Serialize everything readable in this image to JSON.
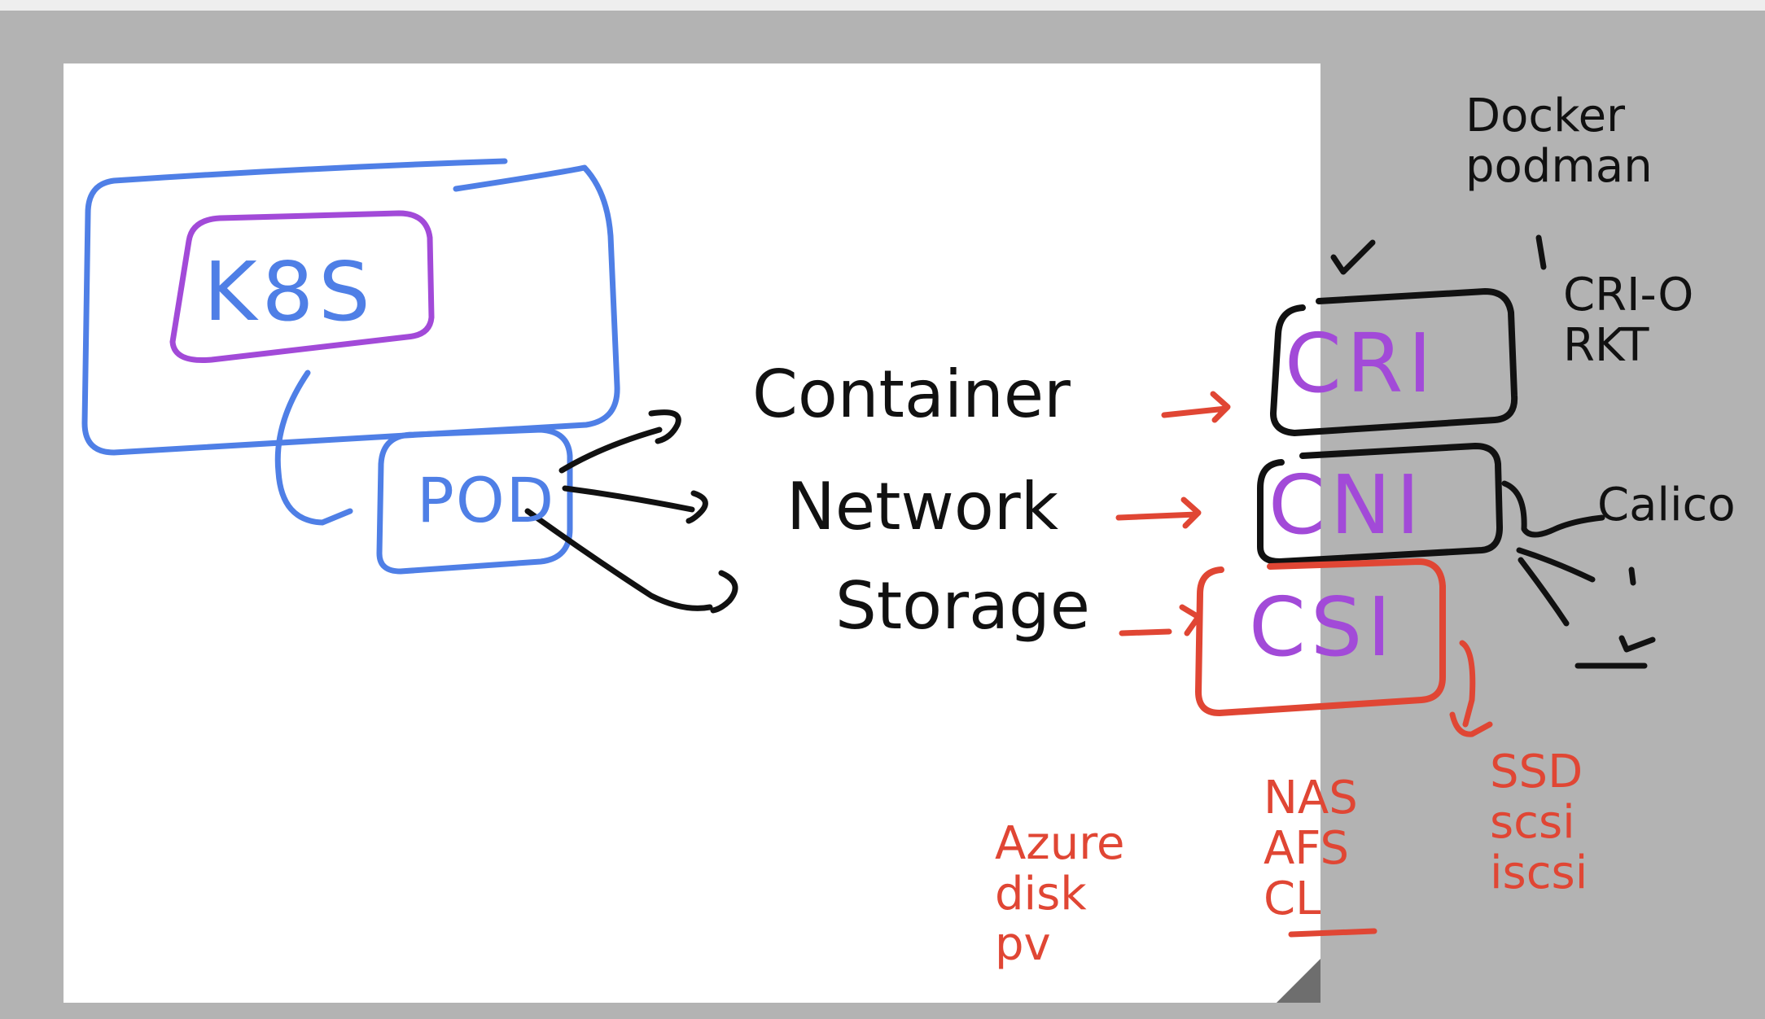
{
  "colors": {
    "background": "#b3b3b3",
    "page": "#ffffff",
    "blue_ink": "#4f7fe6",
    "purple_ink": "#a24ad8",
    "black_ink": "#111111",
    "red_ink": "#e04634"
  },
  "diagram": {
    "k8s_label": "K8S",
    "pod_label": "POD",
    "categories": [
      "Container",
      "Network",
      "Storage"
    ],
    "interfaces": [
      "CRI",
      "CNI",
      "CSI"
    ],
    "cri_implementations": "Docker\npodman",
    "cri_options": "CRI-O\nRKT",
    "cni_plugin": "Calico",
    "csi_col1": "Azure\ndisk\npv",
    "csi_col2": "NAS\nAFS\nCL",
    "csi_col3": "SSD\nscsi\niscsi"
  }
}
